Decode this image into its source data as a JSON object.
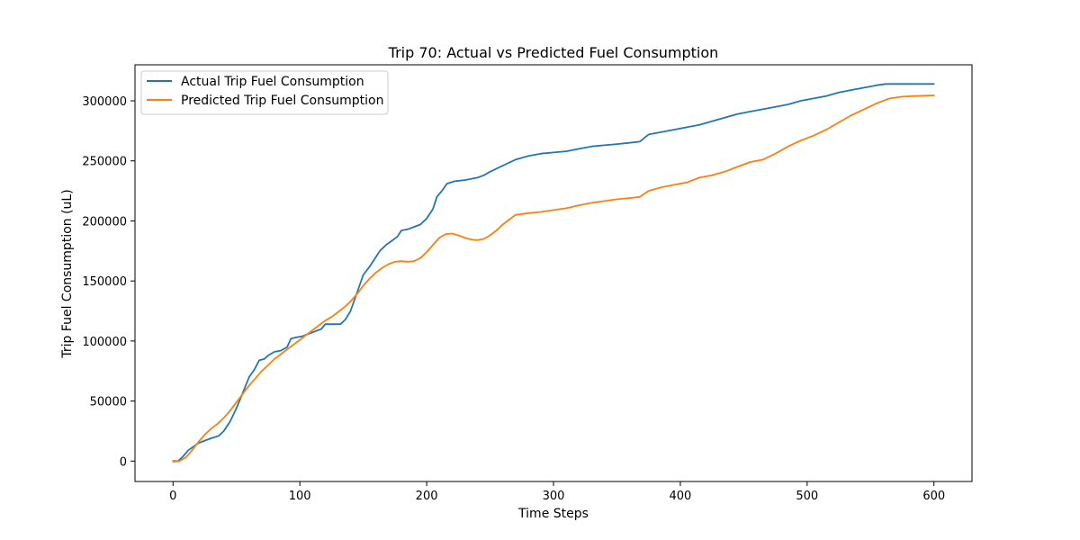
{
  "chart_data": {
    "type": "line",
    "title": "Trip 70: Actual vs Predicted Fuel Consumption",
    "xlabel": "Time Steps",
    "ylabel": "Trip Fuel Consumption (uL)",
    "xlim": [
      -30,
      630
    ],
    "ylim": [
      -17000,
      330000
    ],
    "xticks": [
      0,
      100,
      200,
      300,
      400,
      500,
      600
    ],
    "yticks": [
      0,
      50000,
      100000,
      150000,
      200000,
      250000,
      300000
    ],
    "grid": false,
    "legend_position": "top-left",
    "series": [
      {
        "name": "Actual Trip Fuel Consumption",
        "color": "#1f77b4",
        "points": [
          [
            0,
            0
          ],
          [
            4,
            0
          ],
          [
            8,
            4000
          ],
          [
            12,
            9000
          ],
          [
            16,
            12000
          ],
          [
            20,
            15000
          ],
          [
            25,
            17000
          ],
          [
            30,
            19000
          ],
          [
            36,
            21000
          ],
          [
            40,
            25000
          ],
          [
            45,
            33000
          ],
          [
            50,
            44000
          ],
          [
            55,
            57000
          ],
          [
            60,
            70000
          ],
          [
            64,
            76000
          ],
          [
            68,
            84000
          ],
          [
            72,
            85000
          ],
          [
            75,
            88000
          ],
          [
            80,
            91000
          ],
          [
            85,
            92000
          ],
          [
            90,
            95000
          ],
          [
            93,
            102000
          ],
          [
            97,
            103000
          ],
          [
            102,
            104000
          ],
          [
            107,
            106000
          ],
          [
            112,
            108000
          ],
          [
            117,
            110000
          ],
          [
            120,
            114000
          ],
          [
            124,
            114000
          ],
          [
            128,
            114000
          ],
          [
            132,
            114000
          ],
          [
            136,
            118000
          ],
          [
            140,
            125000
          ],
          [
            145,
            140000
          ],
          [
            150,
            155000
          ],
          [
            155,
            162000
          ],
          [
            160,
            170000
          ],
          [
            163,
            175000
          ],
          [
            168,
            180000
          ],
          [
            172,
            183000
          ],
          [
            177,
            187000
          ],
          [
            180,
            192000
          ],
          [
            185,
            193000
          ],
          [
            190,
            195000
          ],
          [
            195,
            197000
          ],
          [
            200,
            202000
          ],
          [
            205,
            210000
          ],
          [
            208,
            220000
          ],
          [
            212,
            225000
          ],
          [
            216,
            231000
          ],
          [
            222,
            233000
          ],
          [
            230,
            234000
          ],
          [
            240,
            236000
          ],
          [
            245,
            238000
          ],
          [
            250,
            241000
          ],
          [
            260,
            246000
          ],
          [
            270,
            251000
          ],
          [
            280,
            254000
          ],
          [
            290,
            256000
          ],
          [
            300,
            257000
          ],
          [
            310,
            258000
          ],
          [
            320,
            260000
          ],
          [
            330,
            262000
          ],
          [
            340,
            263000
          ],
          [
            350,
            264000
          ],
          [
            360,
            265000
          ],
          [
            368,
            266000
          ],
          [
            375,
            272000
          ],
          [
            385,
            274000
          ],
          [
            395,
            276000
          ],
          [
            405,
            278000
          ],
          [
            415,
            280000
          ],
          [
            425,
            283000
          ],
          [
            435,
            286000
          ],
          [
            445,
            289000
          ],
          [
            455,
            291000
          ],
          [
            465,
            293000
          ],
          [
            475,
            295000
          ],
          [
            485,
            297000
          ],
          [
            495,
            300000
          ],
          [
            505,
            302000
          ],
          [
            515,
            304000
          ],
          [
            525,
            307000
          ],
          [
            535,
            309000
          ],
          [
            545,
            311000
          ],
          [
            555,
            313000
          ],
          [
            562,
            314000
          ],
          [
            580,
            314000
          ],
          [
            600,
            314000
          ]
        ]
      },
      {
        "name": "Predicted Trip Fuel Consumption",
        "color": "#ff7f0e",
        "points": [
          [
            0,
            -500
          ],
          [
            5,
            0
          ],
          [
            10,
            3000
          ],
          [
            15,
            9000
          ],
          [
            20,
            16000
          ],
          [
            25,
            22000
          ],
          [
            30,
            27000
          ],
          [
            35,
            31000
          ],
          [
            40,
            36000
          ],
          [
            45,
            42000
          ],
          [
            50,
            49000
          ],
          [
            55,
            56000
          ],
          [
            60,
            63000
          ],
          [
            65,
            69000
          ],
          [
            70,
            75000
          ],
          [
            75,
            80000
          ],
          [
            80,
            85000
          ],
          [
            85,
            89000
          ],
          [
            90,
            93000
          ],
          [
            95,
            97000
          ],
          [
            100,
            101000
          ],
          [
            105,
            105000
          ],
          [
            110,
            109000
          ],
          [
            115,
            113000
          ],
          [
            120,
            117000
          ],
          [
            125,
            120000
          ],
          [
            130,
            124000
          ],
          [
            135,
            128000
          ],
          [
            140,
            133000
          ],
          [
            145,
            139000
          ],
          [
            150,
            146000
          ],
          [
            155,
            152000
          ],
          [
            160,
            157000
          ],
          [
            165,
            161000
          ],
          [
            170,
            164000
          ],
          [
            175,
            166000
          ],
          [
            180,
            166500
          ],
          [
            185,
            166000
          ],
          [
            190,
            166500
          ],
          [
            195,
            169000
          ],
          [
            200,
            174000
          ],
          [
            205,
            180000
          ],
          [
            210,
            186000
          ],
          [
            215,
            189000
          ],
          [
            220,
            189500
          ],
          [
            225,
            188000
          ],
          [
            230,
            186000
          ],
          [
            235,
            184500
          ],
          [
            240,
            184000
          ],
          [
            245,
            185000
          ],
          [
            250,
            188000
          ],
          [
            255,
            192000
          ],
          [
            260,
            197000
          ],
          [
            265,
            201000
          ],
          [
            270,
            205000
          ],
          [
            280,
            206500
          ],
          [
            290,
            207500
          ],
          [
            300,
            209000
          ],
          [
            310,
            210500
          ],
          [
            320,
            213000
          ],
          [
            330,
            215000
          ],
          [
            340,
            216500
          ],
          [
            350,
            218000
          ],
          [
            360,
            219000
          ],
          [
            368,
            220000
          ],
          [
            375,
            225000
          ],
          [
            385,
            228000
          ],
          [
            395,
            230000
          ],
          [
            405,
            232000
          ],
          [
            415,
            236000
          ],
          [
            425,
            238000
          ],
          [
            435,
            241000
          ],
          [
            445,
            245000
          ],
          [
            455,
            249000
          ],
          [
            465,
            251000
          ],
          [
            475,
            256000
          ],
          [
            485,
            262000
          ],
          [
            495,
            267000
          ],
          [
            505,
            271000
          ],
          [
            515,
            276000
          ],
          [
            525,
            282000
          ],
          [
            535,
            288000
          ],
          [
            545,
            293000
          ],
          [
            555,
            298000
          ],
          [
            565,
            302000
          ],
          [
            575,
            303500
          ],
          [
            585,
            304000
          ],
          [
            600,
            304500
          ]
        ]
      }
    ]
  }
}
